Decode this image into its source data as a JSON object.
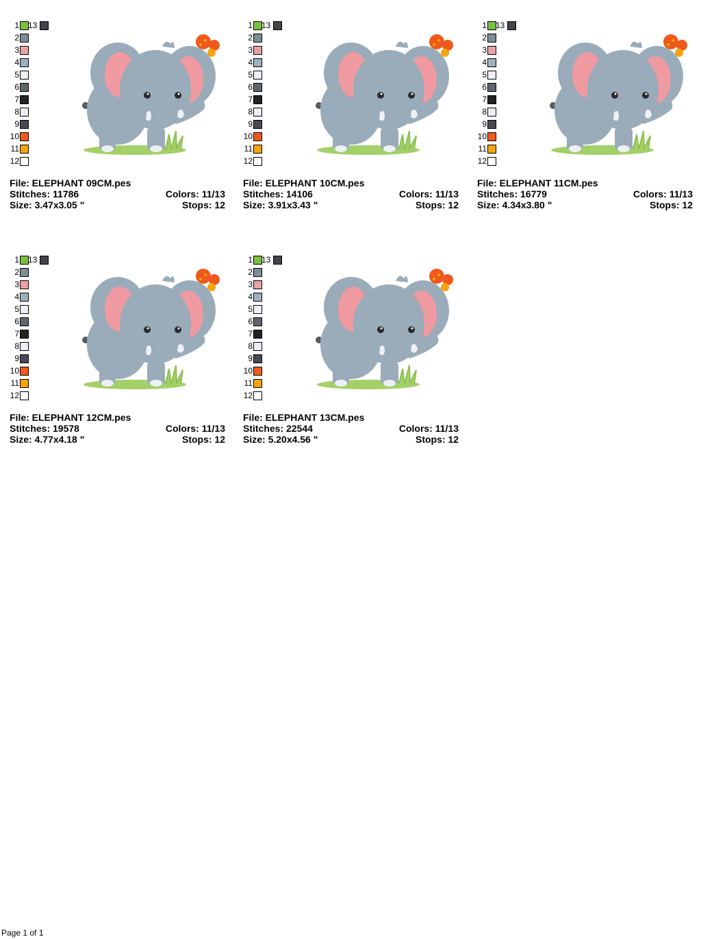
{
  "thread_colors": [
    {
      "num": "1",
      "color": "#7ac143"
    },
    {
      "num": "2",
      "color": "#7d8e99"
    },
    {
      "num": "3",
      "color": "#e8a2a6"
    },
    {
      "num": "4",
      "color": "#9fb1bf"
    },
    {
      "num": "5",
      "color": "#eef0f6"
    },
    {
      "num": "6",
      "color": "#5f656b"
    },
    {
      "num": "7",
      "color": "#232323"
    },
    {
      "num": "8",
      "color": "#eceef5"
    },
    {
      "num": "9",
      "color": "#4a4752"
    },
    {
      "num": "10",
      "color": "#ef5a1c"
    },
    {
      "num": "11",
      "color": "#f5a40e"
    },
    {
      "num": "12",
      "color": "#ffffff"
    },
    {
      "num": "13",
      "color": "#45424c"
    }
  ],
  "designs": [
    {
      "file": "File: ELEPHANT 09CM.pes",
      "stitches": "Stitches: 11786",
      "colors": "Colors: 11/13",
      "size": "Size: 3.47x3.05 \"",
      "stops": "Stops: 12"
    },
    {
      "file": "File: ELEPHANT 10CM.pes",
      "stitches": "Stitches: 14106",
      "colors": "Colors: 11/13",
      "size": "Size: 3.91x3.43 \"",
      "stops": "Stops: 12"
    },
    {
      "file": "File: ELEPHANT 11CM.pes",
      "stitches": "Stitches: 16779",
      "colors": "Colors: 11/13",
      "size": "Size: 4.34x3.80 \"",
      "stops": "Stops: 12"
    },
    {
      "file": "File: ELEPHANT 12CM.pes",
      "stitches": "Stitches: 19578",
      "colors": "Colors: 11/13",
      "size": "Size: 4.77x4.18 \"",
      "stops": "Stops: 12"
    },
    {
      "file": "File: ELEPHANT 13CM.pes",
      "stitches": "Stitches: 22544",
      "colors": "Colors: 11/13",
      "size": "Size: 5.20x4.56 \"",
      "stops": "Stops: 12"
    }
  ],
  "footer": "Page 1 of 1"
}
